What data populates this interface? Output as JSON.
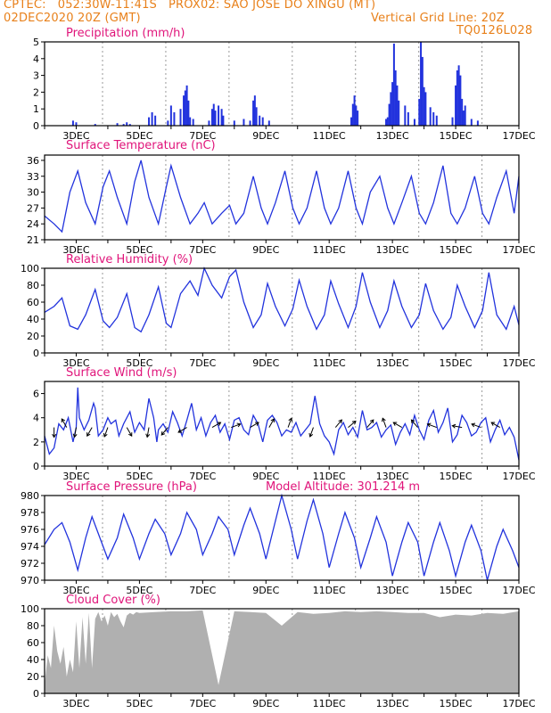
{
  "header": {
    "line1_left": "CPTEC:   052:30W-11:41S   PROX02: SAO JOSE DO XINGU (MT)",
    "line2_left": "02DEC2020 20Z (GMT)",
    "line2_right": "Vertical Grid Line: 20Z",
    "line3_right": "TQ0126L028",
    "model_altitude": "Model Altitude: 301.214 m"
  },
  "colors": {
    "header": "#e8801a",
    "title": "#e0147a",
    "line": "#2233dd",
    "cloud": "#b0b0b0",
    "grid": "#999999"
  },
  "x_labels": [
    "3DEC",
    "5DEC",
    "7DEC",
    "9DEC",
    "11DEC",
    "13DEC",
    "15DEC",
    "17DEC"
  ],
  "chart_data": [
    {
      "type": "bar",
      "title": "Precipitation (mm/h)",
      "ylim": [
        0,
        5
      ],
      "yticks": [
        0,
        1,
        2,
        3,
        4,
        5
      ],
      "x_start_day": 2.0,
      "x_end_day": 17.0,
      "values": [
        [
          2.9,
          0.3
        ],
        [
          3.0,
          0.2
        ],
        [
          3.6,
          0.1
        ],
        [
          4.3,
          0.15
        ],
        [
          4.5,
          0.1
        ],
        [
          4.6,
          0.2
        ],
        [
          4.7,
          0.1
        ],
        [
          5.3,
          0.5
        ],
        [
          5.4,
          0.8
        ],
        [
          5.5,
          0.6
        ],
        [
          5.9,
          0.3
        ],
        [
          6.0,
          1.2
        ],
        [
          6.1,
          0.8
        ],
        [
          6.3,
          1.0
        ],
        [
          6.4,
          1.8
        ],
        [
          6.45,
          2.1
        ],
        [
          6.5,
          2.4
        ],
        [
          6.55,
          1.5
        ],
        [
          6.6,
          0.5
        ],
        [
          6.7,
          0.4
        ],
        [
          7.2,
          0.3
        ],
        [
          7.3,
          1.0
        ],
        [
          7.35,
          1.3
        ],
        [
          7.4,
          0.9
        ],
        [
          7.5,
          1.2
        ],
        [
          7.6,
          1.0
        ],
        [
          7.65,
          0.6
        ],
        [
          8.0,
          0.3
        ],
        [
          8.3,
          0.4
        ],
        [
          8.5,
          0.3
        ],
        [
          8.6,
          1.5
        ],
        [
          8.65,
          1.8
        ],
        [
          8.7,
          1.1
        ],
        [
          8.8,
          0.6
        ],
        [
          8.9,
          0.5
        ],
        [
          9.1,
          0.3
        ],
        [
          11.7,
          0.5
        ],
        [
          11.75,
          1.3
        ],
        [
          11.8,
          1.8
        ],
        [
          11.85,
          1.2
        ],
        [
          11.9,
          0.9
        ],
        [
          12.8,
          0.4
        ],
        [
          12.85,
          0.5
        ],
        [
          12.9,
          1.3
        ],
        [
          12.95,
          2.0
        ],
        [
          13.0,
          2.6
        ],
        [
          13.05,
          4.9
        ],
        [
          13.1,
          3.3
        ],
        [
          13.15,
          2.4
        ],
        [
          13.2,
          1.5
        ],
        [
          13.4,
          1.2
        ],
        [
          13.5,
          0.8
        ],
        [
          13.7,
          0.4
        ],
        [
          13.85,
          1.6
        ],
        [
          13.9,
          5.0
        ],
        [
          13.95,
          4.1
        ],
        [
          14.0,
          2.3
        ],
        [
          14.05,
          2.0
        ],
        [
          14.2,
          1.1
        ],
        [
          14.3,
          0.8
        ],
        [
          14.4,
          0.6
        ],
        [
          14.9,
          0.5
        ],
        [
          15.0,
          2.4
        ],
        [
          15.05,
          3.3
        ],
        [
          15.1,
          3.6
        ],
        [
          15.15,
          3.0
        ],
        [
          15.2,
          1.6
        ],
        [
          15.25,
          0.9
        ],
        [
          15.3,
          1.2
        ],
        [
          15.5,
          0.4
        ],
        [
          15.7,
          0.3
        ]
      ]
    },
    {
      "type": "line",
      "title": "Surface Temperature (nC)",
      "ylim": [
        21,
        37
      ],
      "yticks": [
        21,
        24,
        27,
        30,
        33,
        36
      ],
      "x": [
        2.0,
        2.3,
        2.55,
        2.8,
        3.05,
        3.3,
        3.6,
        3.85,
        4.05,
        4.3,
        4.6,
        4.85,
        5.05,
        5.3,
        5.6,
        5.85,
        6.0,
        6.3,
        6.6,
        6.85,
        7.05,
        7.3,
        7.6,
        7.85,
        8.05,
        8.3,
        8.6,
        8.85,
        9.05,
        9.3,
        9.6,
        9.85,
        10.05,
        10.3,
        10.6,
        10.85,
        11.05,
        11.3,
        11.6,
        11.85,
        12.05,
        12.3,
        12.6,
        12.85,
        13.05,
        13.3,
        13.6,
        13.85,
        14.05,
        14.3,
        14.6,
        14.85,
        15.05,
        15.3,
        15.6,
        15.85,
        16.05,
        16.3,
        16.6,
        16.85,
        17.0
      ],
      "values": [
        25.5,
        24,
        22.5,
        30,
        34,
        28,
        24,
        31,
        34,
        29,
        24,
        32,
        36,
        29,
        24,
        31,
        35,
        29,
        24,
        26,
        28,
        24,
        26,
        27.5,
        24,
        26,
        33,
        27,
        24,
        28,
        34,
        27,
        24,
        27,
        34,
        27,
        24,
        27,
        34,
        27,
        24,
        30,
        33,
        27,
        24,
        28,
        33,
        26,
        24,
        28,
        35,
        26,
        24,
        27,
        33,
        26,
        24,
        29,
        34,
        26,
        33
      ]
    },
    {
      "type": "line",
      "title": "Relative Humidity (%)",
      "ylim": [
        0,
        100
      ],
      "yticks": [
        0,
        20,
        40,
        60,
        80,
        100
      ],
      "x": [
        2.0,
        2.3,
        2.55,
        2.8,
        3.05,
        3.3,
        3.6,
        3.85,
        4.05,
        4.3,
        4.6,
        4.85,
        5.05,
        5.3,
        5.6,
        5.85,
        6.0,
        6.3,
        6.6,
        6.85,
        7.05,
        7.3,
        7.6,
        7.85,
        8.05,
        8.3,
        8.6,
        8.85,
        9.05,
        9.3,
        9.6,
        9.85,
        10.05,
        10.3,
        10.6,
        10.85,
        11.05,
        11.3,
        11.6,
        11.85,
        12.05,
        12.3,
        12.6,
        12.85,
        13.05,
        13.3,
        13.6,
        13.85,
        14.05,
        14.3,
        14.6,
        14.85,
        15.05,
        15.3,
        15.6,
        15.85,
        16.05,
        16.3,
        16.6,
        16.85,
        17.0
      ],
      "values": [
        48,
        55,
        65,
        32,
        28,
        45,
        75,
        38,
        30,
        42,
        70,
        30,
        25,
        45,
        78,
        35,
        30,
        70,
        85,
        68,
        100,
        80,
        65,
        90,
        98,
        60,
        30,
        45,
        82,
        55,
        32,
        52,
        86,
        55,
        28,
        45,
        85,
        58,
        30,
        55,
        95,
        60,
        30,
        50,
        85,
        55,
        30,
        45,
        82,
        50,
        28,
        42,
        80,
        55,
        30,
        50,
        95,
        45,
        28,
        55,
        33
      ]
    },
    {
      "type": "line",
      "title": "Surface Wind (m/s)",
      "ylim": [
        0,
        7
      ],
      "yticks": [
        0,
        2,
        4,
        6
      ],
      "x": [
        2.0,
        2.15,
        2.3,
        2.45,
        2.6,
        2.75,
        2.9,
        3.0,
        3.05,
        3.1,
        3.25,
        3.4,
        3.55,
        3.6,
        3.7,
        3.85,
        4.0,
        4.1,
        4.25,
        4.35,
        4.5,
        4.7,
        4.85,
        5.0,
        5.15,
        5.3,
        5.45,
        5.55,
        5.6,
        5.75,
        5.9,
        6.05,
        6.2,
        6.35,
        6.5,
        6.65,
        6.8,
        6.95,
        7.1,
        7.25,
        7.4,
        7.55,
        7.7,
        7.85,
        8.0,
        8.15,
        8.3,
        8.45,
        8.6,
        8.75,
        8.9,
        9.05,
        9.2,
        9.35,
        9.5,
        9.65,
        9.8,
        9.95,
        10.1,
        10.25,
        10.4,
        10.55,
        10.7,
        10.85,
        11.0,
        11.15,
        11.3,
        11.45,
        11.6,
        11.75,
        11.9,
        12.05,
        12.2,
        12.35,
        12.5,
        12.65,
        12.8,
        12.95,
        13.1,
        13.25,
        13.4,
        13.55,
        13.7,
        13.85,
        14.0,
        14.15,
        14.3,
        14.45,
        14.6,
        14.75,
        14.9,
        15.05,
        15.2,
        15.35,
        15.5,
        15.65,
        15.8,
        15.95,
        16.1,
        16.25,
        16.4,
        16.55,
        16.7,
        16.85,
        17.0
      ],
      "values": [
        2.5,
        1.0,
        1.5,
        3.5,
        3.0,
        4.0,
        2.0,
        3.2,
        6.5,
        4.0,
        3.0,
        3.8,
        5.2,
        4.8,
        2.5,
        3.0,
        4.0,
        3.5,
        3.8,
        2.5,
        3.5,
        4.5,
        2.8,
        3.6,
        3.0,
        5.6,
        4.0,
        2.0,
        3.0,
        3.5,
        2.8,
        4.5,
        3.6,
        2.5,
        3.8,
        5.2,
        3.0,
        4.0,
        2.5,
        3.6,
        4.2,
        2.8,
        3.5,
        2.2,
        3.8,
        4.0,
        3.0,
        2.6,
        4.2,
        3.5,
        2.0,
        3.8,
        4.2,
        3.6,
        2.5,
        3.0,
        2.8,
        3.6,
        2.5,
        3.0,
        3.5,
        5.8,
        3.5,
        2.5,
        2.0,
        1.0,
        3.0,
        3.6,
        2.6,
        3.2,
        2.4,
        4.6,
        3.0,
        3.2,
        3.6,
        2.4,
        3.0,
        3.4,
        1.8,
        2.8,
        3.5,
        2.6,
        4.2,
        3.0,
        2.2,
        3.8,
        4.6,
        2.8,
        3.6,
        4.8,
        2.0,
        2.6,
        4.2,
        3.6,
        2.5,
        2.8,
        3.6,
        4.0,
        2.0,
        3.0,
        3.8,
        2.6,
        3.2,
        2.4,
        0.5
      ],
      "arrows": [
        [
          2.3,
          90
        ],
        [
          2.7,
          -120
        ],
        [
          3.0,
          100
        ],
        [
          3.5,
          120
        ],
        [
          4.0,
          110
        ],
        [
          4.6,
          60
        ],
        [
          5.3,
          100
        ],
        [
          5.9,
          130
        ],
        [
          6.5,
          150
        ],
        [
          7.3,
          -30
        ],
        [
          7.9,
          -20
        ],
        [
          8.5,
          -30
        ],
        [
          9.1,
          -60
        ],
        [
          9.7,
          -70
        ],
        [
          10.5,
          110
        ],
        [
          11.2,
          -50
        ],
        [
          11.6,
          -40
        ],
        [
          12.2,
          -50
        ],
        [
          12.8,
          -110
        ],
        [
          13.3,
          -150
        ],
        [
          13.8,
          -130
        ],
        [
          14.4,
          -160
        ],
        [
          15.2,
          -170
        ],
        [
          15.8,
          -160
        ],
        [
          16.4,
          -150
        ]
      ]
    },
    {
      "type": "line",
      "title": "Surface Pressure (hPa)",
      "ylim": [
        970,
        980
      ],
      "yticks": [
        970,
        972,
        974,
        976,
        978,
        980
      ],
      "x": [
        2.0,
        2.3,
        2.55,
        2.8,
        3.05,
        3.3,
        3.5,
        3.75,
        4.0,
        4.3,
        4.5,
        4.8,
        5.0,
        5.3,
        5.5,
        5.8,
        6.0,
        6.3,
        6.5,
        6.8,
        7.0,
        7.3,
        7.5,
        7.8,
        8.0,
        8.3,
        8.5,
        8.8,
        9.0,
        9.3,
        9.5,
        9.8,
        10.0,
        10.3,
        10.5,
        10.8,
        11.0,
        11.3,
        11.5,
        11.8,
        12.0,
        12.3,
        12.5,
        12.8,
        13.0,
        13.3,
        13.5,
        13.8,
        14.0,
        14.3,
        14.5,
        14.8,
        15.0,
        15.3,
        15.5,
        15.8,
        16.0,
        16.3,
        16.5,
        16.8,
        17.0
      ],
      "values": [
        974.2,
        976,
        976.8,
        974.5,
        971.2,
        975,
        977.5,
        975,
        972.5,
        975,
        977.8,
        975,
        972.5,
        975.5,
        977.2,
        975.5,
        973,
        975.5,
        978,
        976,
        973,
        975.5,
        977.5,
        976,
        973,
        976.5,
        978.5,
        975.5,
        972.5,
        977,
        980,
        976,
        972.5,
        977,
        979.5,
        975.5,
        971.5,
        975.5,
        978,
        975,
        971.5,
        975,
        977.5,
        974.5,
        970.5,
        974.5,
        976.8,
        974.5,
        970.5,
        974.5,
        976.8,
        973.5,
        970.5,
        974.5,
        976.5,
        973.5,
        970,
        974,
        976,
        973.5,
        971.5
      ]
    },
    {
      "type": "bar",
      "title": "Cloud Cover (%)",
      "ylim": [
        0,
        100
      ],
      "yticks": [
        0,
        20,
        40,
        60,
        80,
        100
      ],
      "x": [
        2.0,
        2.1,
        2.2,
        2.3,
        2.4,
        2.5,
        2.6,
        2.7,
        2.8,
        2.9,
        3.0,
        3.1,
        3.2,
        3.3,
        3.4,
        3.5,
        3.6,
        3.7,
        3.8,
        3.9,
        4.0,
        4.1,
        4.2,
        4.3,
        4.4,
        4.5,
        4.6,
        4.7,
        4.8,
        4.9,
        5.0,
        5.5,
        6.0,
        6.5,
        7.0,
        7.5,
        8.0,
        8.5,
        9.0,
        9.5,
        10.0,
        10.5,
        11.0,
        11.5,
        12.0,
        12.5,
        13.0,
        13.5,
        14.0,
        14.5,
        15.0,
        15.5,
        16.0,
        16.5,
        17.0
      ],
      "values": [
        10,
        45,
        30,
        80,
        50,
        35,
        55,
        20,
        40,
        25,
        85,
        30,
        90,
        35,
        95,
        30,
        88,
        96,
        85,
        92,
        80,
        96,
        90,
        94,
        85,
        78,
        92,
        95,
        93,
        96,
        95,
        96,
        97,
        97,
        98,
        10,
        97,
        96,
        95,
        80,
        96,
        94,
        95,
        97,
        96,
        97,
        96,
        95,
        95,
        90,
        93,
        92,
        95,
        94,
        97
      ]
    }
  ]
}
